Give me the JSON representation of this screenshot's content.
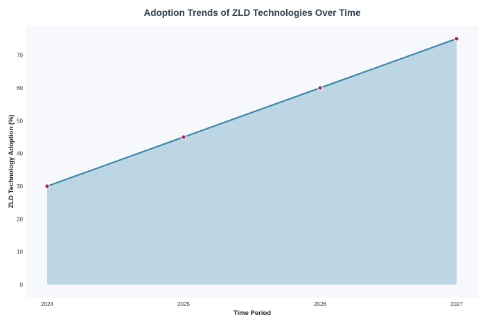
{
  "chart_data": {
    "type": "area",
    "title": "Adoption Trends of ZLD Technologies Over Time",
    "xlabel": "Time Period",
    "ylabel": "ZLD Technology Adoption (%)",
    "categories": [
      "2024",
      "2025",
      "2026",
      "2027"
    ],
    "series": [
      {
        "values": [
          30,
          45,
          60,
          75
        ]
      }
    ],
    "ylim": [
      -4,
      79
    ],
    "yticks": [
      0,
      10,
      20,
      30,
      40,
      50,
      60,
      70
    ],
    "grid": false,
    "legend": "none",
    "colors": {
      "line": "#3a87a8",
      "fill": "#bcd7e3",
      "marker": "#a3245a",
      "marker_edge": "#ffffff",
      "plot_background": "#f7f8fb"
    }
  }
}
